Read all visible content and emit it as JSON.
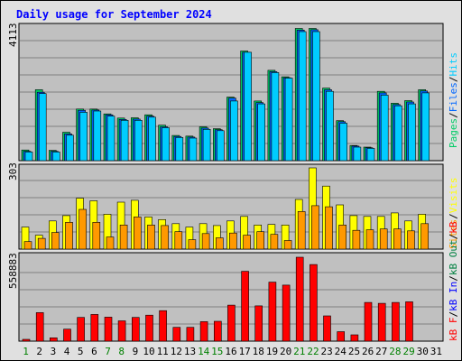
{
  "title": "Daily usage for September 2024",
  "colors": {
    "background": "#e0e0e0",
    "panel": "#c0c0c0",
    "grid": "#808080",
    "hits": "#00ccff",
    "files": "#0066ff",
    "pages": "#00cc66",
    "visits": "#ffff00",
    "sites": "#ff9900",
    "kbin": "#0000ff",
    "kbout": "#008040",
    "kbf": "#ff0000",
    "title": "#0000ff",
    "weekend_label": "#008000",
    "weekday_label": "#000000"
  },
  "chart_data": [
    {
      "type": "bar",
      "panel": "pages-files-hits",
      "ymax_label": "4113",
      "ymax": 4113,
      "right_labels": [
        "Pages",
        "/",
        "Files",
        "/",
        "Hits"
      ],
      "categories": [
        "1",
        "2",
        "3",
        "4",
        "5",
        "6",
        "7",
        "8",
        "9",
        "10",
        "11",
        "12",
        "13",
        "14",
        "15",
        "16",
        "17",
        "18",
        "19",
        "20",
        "21",
        "22",
        "23",
        "24",
        "25",
        "26",
        "27",
        "28",
        "29",
        "30",
        "31"
      ],
      "series": [
        {
          "name": "Pages",
          "values": [
            330,
            2200,
            320,
            880,
            1600,
            1600,
            1450,
            1320,
            1330,
            1420,
            1100,
            780,
            760,
            1050,
            990,
            1970,
            3400,
            1850,
            2800,
            2600,
            4100,
            4100,
            2250,
            1240,
            470,
            420,
            2150,
            1780,
            1860,
            2200,
            0
          ]
        },
        {
          "name": "Files",
          "values": [
            290,
            2120,
            290,
            830,
            1560,
            1570,
            1420,
            1280,
            1290,
            1380,
            1050,
            750,
            730,
            1010,
            960,
            1940,
            3360,
            1800,
            2760,
            2570,
            4050,
            4060,
            2200,
            1210,
            450,
            400,
            2100,
            1740,
            1820,
            2160,
            0
          ]
        },
        {
          "name": "Hits",
          "values": [
            270,
            2080,
            270,
            790,
            1500,
            1540,
            1380,
            1250,
            1250,
            1350,
            1020,
            720,
            700,
            970,
            930,
            1850,
            3360,
            1760,
            2730,
            2560,
            4000,
            4000,
            2150,
            1160,
            420,
            380,
            2030,
            1700,
            1760,
            2100,
            0
          ]
        }
      ]
    },
    {
      "type": "bar",
      "panel": "sites-visits",
      "ymax_label": "303",
      "ymax": 303,
      "right_labels": [
        "Sites",
        "/",
        "Visits"
      ],
      "categories": [
        "1",
        "2",
        "3",
        "4",
        "5",
        "6",
        "7",
        "8",
        "9",
        "10",
        "11",
        "12",
        "13",
        "14",
        "15",
        "16",
        "17",
        "18",
        "19",
        "20",
        "21",
        "22",
        "23",
        "24",
        "25",
        "26",
        "27",
        "28",
        "29",
        "30",
        "31"
      ],
      "series": [
        {
          "name": "Visits",
          "values": [
            82,
            52,
            105,
            125,
            190,
            180,
            130,
            175,
            182,
            120,
            110,
            95,
            82,
            95,
            88,
            105,
            122,
            90,
            92,
            90,
            185,
            303,
            235,
            165,
            125,
            122,
            122,
            135,
            105,
            130,
            0
          ]
        },
        {
          "name": "Sites",
          "values": [
            28,
            40,
            62,
            100,
            148,
            100,
            45,
            90,
            120,
            90,
            88,
            65,
            35,
            58,
            42,
            60,
            52,
            65,
            55,
            32,
            140,
            162,
            158,
            90,
            70,
            72,
            75,
            75,
            68,
            95,
            0
          ]
        }
      ]
    },
    {
      "type": "bar",
      "panel": "kbytes",
      "ymax_label": "558883",
      "ymax": 558883,
      "right_labels": [
        "kB F",
        "/",
        "kB In",
        "/",
        "kB Out",
        "/",
        "kB"
      ],
      "categories": [
        "1",
        "2",
        "3",
        "4",
        "5",
        "6",
        "7",
        "8",
        "9",
        "10",
        "11",
        "12",
        "13",
        "14",
        "15",
        "16",
        "17",
        "18",
        "19",
        "20",
        "21",
        "22",
        "23",
        "24",
        "25",
        "26",
        "27",
        "28",
        "29",
        "30",
        "31"
      ],
      "series": [
        {
          "name": "kB F",
          "values": [
            12000,
            190000,
            22000,
            80000,
            158000,
            178000,
            160000,
            135000,
            158000,
            173000,
            203000,
            92000,
            92000,
            130000,
            132000,
            240000,
            465000,
            235000,
            393000,
            373000,
            558883,
            510000,
            168000,
            63000,
            42000,
            258000,
            252000,
            258000,
            262000,
            0,
            0
          ]
        }
      ]
    }
  ],
  "x_labels": [
    "1",
    "2",
    "3",
    "4",
    "5",
    "6",
    "7",
    "8",
    "9",
    "10",
    "11",
    "12",
    "13",
    "14",
    "15",
    "16",
    "17",
    "18",
    "19",
    "20",
    "21",
    "22",
    "23",
    "24",
    "25",
    "26",
    "27",
    "28",
    "29",
    "30",
    "31"
  ],
  "weekend_days": [
    "1",
    "7",
    "8",
    "14",
    "15",
    "21",
    "22",
    "28",
    "29"
  ]
}
